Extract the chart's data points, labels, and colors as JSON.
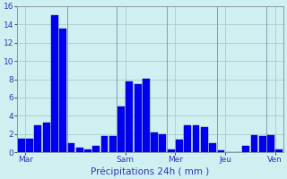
{
  "values": [
    1.5,
    1.5,
    3.0,
    3.2,
    15.0,
    13.5,
    1.0,
    0.5,
    0.3,
    0.7,
    1.8,
    1.8,
    5.0,
    7.8,
    7.5,
    8.1,
    2.2,
    2.0,
    0.3,
    1.4,
    3.0,
    3.0,
    2.8,
    1.0,
    0.2,
    0.0,
    0.0,
    0.7,
    1.9,
    1.8,
    1.9,
    0.3
  ],
  "bar_color": "#0000ee",
  "bar_edge_color": "#0000bb",
  "background_color": "#cff0f0",
  "grid_color": "#aacccc",
  "xlabel": "Précipitations 24h ( mm )",
  "ylim": [
    0,
    16
  ],
  "yticks": [
    0,
    2,
    4,
    6,
    8,
    10,
    12,
    14,
    16
  ],
  "tick_label_color": "#3333bb",
  "xlabel_color": "#3333bb",
  "day_labels": [
    "Mar",
    "Sam",
    "Mer",
    "Jeu",
    "Ven"
  ],
  "day_tick_positions": [
    0.5,
    12.5,
    18.5,
    24.5,
    30.5
  ],
  "vline_positions": [
    0,
    6,
    12,
    18,
    24,
    30
  ],
  "n_bars": 32
}
